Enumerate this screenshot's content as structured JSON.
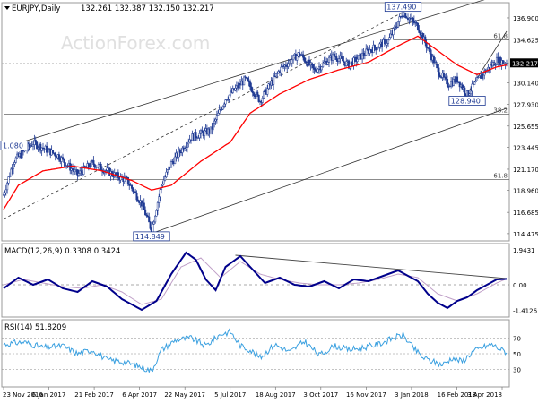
{
  "header": {
    "icon": "triangle-down-icon",
    "symbol": "EURJPY,Daily",
    "ohlc": "132.261 132.387 132.150 132.217",
    "watermark": "ActionForex.com"
  },
  "macd": {
    "label": "MACD(12,26,9) 0.3308 0.3424"
  },
  "rsi": {
    "label": "RSI(14) 51.8209"
  },
  "colors": {
    "bull": "#1f3a93",
    "bear": "#1f3a93",
    "ma": "#ff0000",
    "trend": "#333333",
    "macd_line": "#00008b",
    "macd_signal": "#c0a0c8",
    "rsi_line": "#3aa0e0",
    "grid": "#cccccc",
    "label_box": "#1f3a93"
  },
  "chart_data": [
    {
      "type": "candlestick",
      "panel": "price",
      "ylim": [
        114.0,
        138.2
      ],
      "y_ticks": [
        "136.900",
        "134.625",
        "132.217",
        "130.140",
        "127.930",
        "125.655",
        "123.445",
        "121.170",
        "118.960",
        "116.685",
        "114.475"
      ],
      "price_box": "132.217",
      "x_ticks": [
        "23 Nov 2016",
        "6 Jan 2017",
        "21 Feb 2017",
        "6 Apr 2017",
        "22 May 2017",
        "5 Jul 2017",
        "18 Aug 2017",
        "3 Oct 2017",
        "16 Nov 2017",
        "3 Jan 2018",
        "16 Feb 2018",
        "3 Apr 2018"
      ],
      "x_range": [
        0,
        102
      ],
      "close_anchors": [
        [
          0,
          118.5
        ],
        [
          2,
          122.0
        ],
        [
          6,
          123.9
        ],
        [
          11,
          122.6
        ],
        [
          15,
          120.6
        ],
        [
          18,
          121.8
        ],
        [
          22,
          120.7
        ],
        [
          25,
          120.0
        ],
        [
          28,
          117.6
        ],
        [
          30,
          114.85
        ],
        [
          32,
          119.5
        ],
        [
          34,
          121.8
        ],
        [
          38,
          124.5
        ],
        [
          42,
          125.2
        ],
        [
          45,
          128.5
        ],
        [
          49,
          130.5
        ],
        [
          52,
          128.3
        ],
        [
          56,
          131.5
        ],
        [
          60,
          133.2
        ],
        [
          63,
          131.4
        ],
        [
          67,
          133.0
        ],
        [
          70,
          132.0
        ],
        [
          74,
          133.5
        ],
        [
          78,
          134.5
        ],
        [
          81,
          137.49
        ],
        [
          84,
          136.0
        ],
        [
          88,
          131.5
        ],
        [
          90,
          130.0
        ],
        [
          92,
          130.5
        ],
        [
          94,
          128.94
        ],
        [
          97,
          131.0
        ],
        [
          100,
          132.5
        ],
        [
          102,
          132.217
        ]
      ],
      "ma_anchors": [
        [
          0,
          117.0
        ],
        [
          3,
          119.5
        ],
        [
          8,
          121.0
        ],
        [
          14,
          121.5
        ],
        [
          20,
          121.0
        ],
        [
          26,
          120.0
        ],
        [
          30,
          119.0
        ],
        [
          34,
          119.5
        ],
        [
          40,
          122.0
        ],
        [
          46,
          124.0
        ],
        [
          50,
          127.0
        ],
        [
          56,
          129.0
        ],
        [
          62,
          130.5
        ],
        [
          68,
          131.5
        ],
        [
          74,
          132.3
        ],
        [
          80,
          134.0
        ],
        [
          84,
          135.0
        ],
        [
          88,
          133.5
        ],
        [
          92,
          132.0
        ],
        [
          96,
          131.0
        ],
        [
          100,
          131.8
        ],
        [
          102,
          132.0
        ]
      ],
      "annotations": [
        {
          "text": "137.490",
          "x": 81,
          "y": 137.49,
          "pos": "above"
        },
        {
          "text": "114.849",
          "x": 30,
          "y": 114.85,
          "pos": "below"
        },
        {
          "text": "128.940",
          "x": 94,
          "y": 128.94,
          "pos": "below"
        },
        {
          "text": "1.080",
          "x": 0,
          "y": 123.445,
          "pos": "left"
        }
      ],
      "fib_lines": [
        {
          "label": "61.8",
          "y": 134.625,
          "from": 79
        },
        {
          "label": "38.2",
          "y": 126.9,
          "from": 0
        },
        {
          "label": "61.8",
          "y": 120.1,
          "from": 0
        }
      ],
      "channels": [
        {
          "style": "solid",
          "p1": [
            0,
            123.4
          ],
          "p2": [
            102,
            139.5
          ]
        },
        {
          "style": "dashed",
          "p1": [
            0,
            116.0
          ],
          "p2": [
            81,
            137.49
          ]
        },
        {
          "style": "solid",
          "p1": [
            30,
            114.5
          ],
          "p2": [
            102,
            127.5
          ]
        },
        {
          "style": "solid",
          "p1": [
            94,
            129.0
          ],
          "p2": [
            102,
            135.5
          ]
        }
      ]
    },
    {
      "type": "line",
      "panel": "macd",
      "ylim": [
        -1.6,
        2.1
      ],
      "y_ticks": [
        "1.9431",
        "0.00",
        "-1.4126"
      ],
      "series": [
        {
          "name": "MACD",
          "anchors": [
            [
              0,
              -0.2
            ],
            [
              3,
              0.4
            ],
            [
              6,
              0.0
            ],
            [
              9,
              0.3
            ],
            [
              12,
              -0.2
            ],
            [
              15,
              -0.4
            ],
            [
              18,
              0.2
            ],
            [
              21,
              -0.1
            ],
            [
              24,
              -0.8
            ],
            [
              28,
              -1.4
            ],
            [
              31,
              -0.9
            ],
            [
              34,
              0.6
            ],
            [
              37,
              1.8
            ],
            [
              39,
              1.4
            ],
            [
              41,
              0.3
            ],
            [
              43,
              -0.3
            ],
            [
              45,
              1.0
            ],
            [
              48,
              1.6
            ],
            [
              50,
              1.0
            ],
            [
              53,
              0.1
            ],
            [
              56,
              0.4
            ],
            [
              59,
              0.0
            ],
            [
              62,
              -0.1
            ],
            [
              65,
              0.2
            ],
            [
              68,
              -0.2
            ],
            [
              71,
              0.3
            ],
            [
              74,
              0.2
            ],
            [
              77,
              0.5
            ],
            [
              80,
              0.8
            ],
            [
              82,
              0.5
            ],
            [
              84,
              0.2
            ],
            [
              86,
              -0.5
            ],
            [
              88,
              -1.0
            ],
            [
              90,
              -1.3
            ],
            [
              92,
              -0.9
            ],
            [
              94,
              -0.7
            ],
            [
              96,
              -0.3
            ],
            [
              98,
              0.0
            ],
            [
              100,
              0.3
            ],
            [
              102,
              0.33
            ]
          ]
        },
        {
          "name": "Signal",
          "anchors": [
            [
              0,
              0.0
            ],
            [
              4,
              0.3
            ],
            [
              8,
              0.1
            ],
            [
              12,
              -0.1
            ],
            [
              16,
              -0.2
            ],
            [
              20,
              0.0
            ],
            [
              24,
              -0.4
            ],
            [
              28,
              -1.1
            ],
            [
              32,
              -0.8
            ],
            [
              36,
              1.0
            ],
            [
              40,
              1.5
            ],
            [
              44,
              0.4
            ],
            [
              48,
              1.3
            ],
            [
              52,
              0.6
            ],
            [
              56,
              0.3
            ],
            [
              60,
              0.1
            ],
            [
              64,
              0.0
            ],
            [
              68,
              0.0
            ],
            [
              72,
              0.1
            ],
            [
              76,
              0.3
            ],
            [
              80,
              0.6
            ],
            [
              84,
              0.4
            ],
            [
              88,
              -0.5
            ],
            [
              92,
              -0.9
            ],
            [
              96,
              -0.5
            ],
            [
              100,
              0.1
            ],
            [
              102,
              0.34
            ]
          ]
        }
      ],
      "trend": {
        "p1": [
          47,
          1.65
        ],
        "p2": [
          102,
          0.35
        ]
      }
    },
    {
      "type": "line",
      "panel": "rsi",
      "ylim": [
        10,
        90
      ],
      "y_ticks": [
        "70",
        "50",
        "30"
      ],
      "series": [
        {
          "name": "RSI(14)",
          "anchors": [
            [
              0,
              62
            ],
            [
              4,
              65
            ],
            [
              8,
              58
            ],
            [
              12,
              60
            ],
            [
              15,
              50
            ],
            [
              18,
              55
            ],
            [
              21,
              42
            ],
            [
              24,
              40
            ],
            [
              27,
              35
            ],
            [
              30,
              28
            ],
            [
              32,
              55
            ],
            [
              35,
              68
            ],
            [
              38,
              70
            ],
            [
              41,
              60
            ],
            [
              44,
              75
            ],
            [
              46,
              78
            ],
            [
              48,
              60
            ],
            [
              50,
              55
            ],
            [
              52,
              45
            ],
            [
              55,
              62
            ],
            [
              58,
              52
            ],
            [
              61,
              66
            ],
            [
              64,
              48
            ],
            [
              67,
              60
            ],
            [
              70,
              55
            ],
            [
              73,
              58
            ],
            [
              76,
              62
            ],
            [
              79,
              70
            ],
            [
              81,
              74
            ],
            [
              83,
              58
            ],
            [
              85,
              45
            ],
            [
              87,
              40
            ],
            [
              89,
              36
            ],
            [
              91,
              45
            ],
            [
              93,
              40
            ],
            [
              95,
              52
            ],
            [
              97,
              58
            ],
            [
              99,
              62
            ],
            [
              101,
              55
            ],
            [
              102,
              52
            ]
          ]
        }
      ]
    }
  ]
}
